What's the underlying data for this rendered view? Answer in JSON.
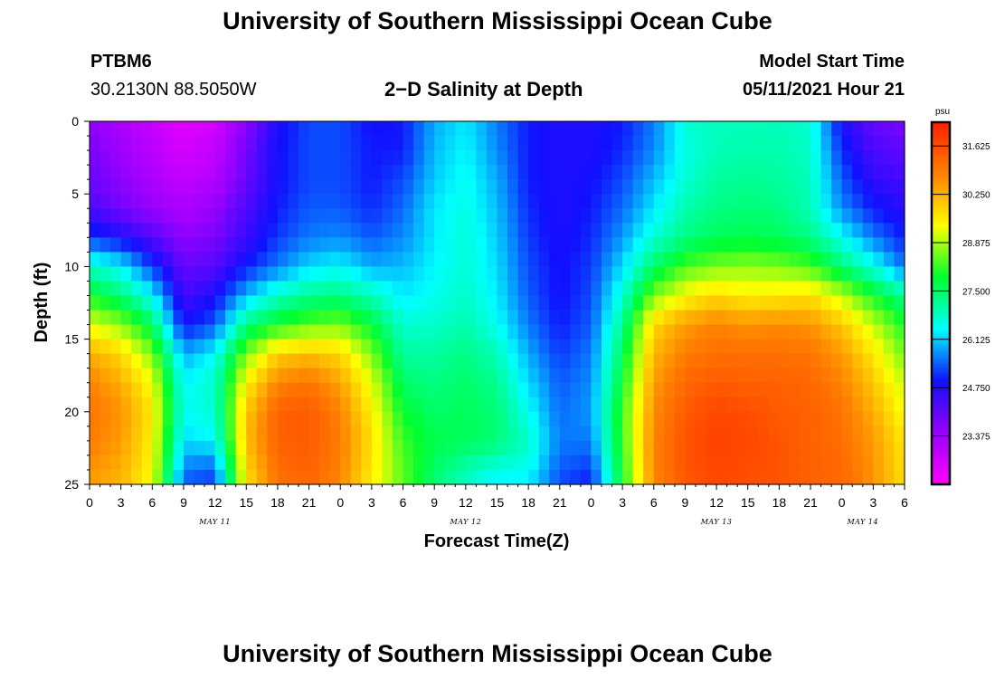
{
  "header": {
    "top_title": "University of Southern Mississippi Ocean Cube",
    "bottom_title": "University of Southern Mississippi Ocean Cube",
    "station_id": "PTBM6",
    "station_coords": "30.2130N  88.5050W",
    "model_start_label": "Model Start Time",
    "model_start_value": "05/11/2021 Hour 21"
  },
  "chart_data": {
    "type": "heatmap",
    "title": "2−D Salinity at Depth",
    "xlabel": "Forecast Time(Z)",
    "ylabel": "Depth (ft)",
    "y_ticks": [
      "0",
      "5",
      "10",
      "15",
      "20",
      "25"
    ],
    "ylim": [
      0,
      25
    ],
    "x_tick_labels": [
      "0",
      "3",
      "6",
      "9",
      "12",
      "15",
      "18",
      "21",
      "0",
      "3",
      "6",
      "9",
      "12",
      "15",
      "18",
      "21",
      "0",
      "3",
      "6",
      "9",
      "12",
      "15",
      "18",
      "21",
      "0",
      "3",
      "6"
    ],
    "date_labels": [
      "MAY 11",
      "MAY 12",
      "MAY 13",
      "MAY 14"
    ],
    "colorbar": {
      "unit": "psu",
      "range": [
        22.0,
        32.3
      ],
      "tick_labels": [
        "31.625",
        "30.250",
        "28.875",
        "27.500",
        "26.125",
        "24.750",
        "23.375"
      ],
      "tick_values": [
        31.625,
        30.25,
        28.875,
        27.5,
        26.125,
        24.75,
        23.375
      ],
      "colors": [
        "#ff00ff",
        "#9a00ff",
        "#1010ff",
        "#00ffff",
        "#00ff30",
        "#ffff00",
        "#ff8000",
        "#ff2000"
      ]
    },
    "salinity_grid": {
      "x_hours": [
        0,
        3,
        6,
        9,
        12,
        15,
        18,
        21,
        24,
        27,
        30,
        33,
        36,
        39,
        42,
        45,
        48,
        51,
        54,
        57,
        60,
        63,
        66,
        69,
        72,
        75,
        78
      ],
      "depth_ft": [
        0,
        2,
        4,
        6,
        8,
        10,
        12,
        14,
        16,
        18,
        20,
        22,
        24,
        25
      ],
      "values": [
        [
          23.6,
          23.2,
          22.8,
          22.4,
          22.6,
          23.6,
          24.8,
          25.3,
          25.3,
          24.9,
          25.0,
          25.9,
          26.3,
          25.6,
          25.0,
          24.8,
          24.8,
          25.0,
          25.6,
          26.7,
          26.9,
          26.9,
          26.9,
          26.7,
          24.8,
          24.0,
          23.8
        ],
        [
          23.8,
          23.4,
          23.0,
          22.6,
          22.9,
          23.9,
          24.9,
          25.3,
          25.3,
          25.0,
          25.0,
          26.0,
          26.4,
          25.7,
          25.0,
          24.8,
          24.8,
          25.1,
          25.7,
          26.6,
          26.9,
          27.0,
          27.0,
          26.8,
          25.1,
          24.3,
          24.1
        ],
        [
          24.0,
          23.6,
          23.2,
          22.9,
          23.1,
          24.0,
          24.9,
          25.3,
          25.3,
          25.0,
          25.3,
          26.1,
          26.5,
          25.9,
          25.0,
          24.8,
          24.9,
          25.3,
          26.0,
          26.7,
          27.1,
          27.2,
          27.1,
          26.9,
          25.4,
          24.6,
          24.4
        ],
        [
          24.3,
          23.9,
          23.5,
          23.2,
          23.5,
          24.3,
          25.0,
          25.4,
          25.4,
          25.1,
          25.5,
          26.3,
          26.6,
          26.0,
          25.1,
          24.8,
          25.0,
          25.5,
          26.3,
          27.0,
          27.3,
          27.4,
          27.3,
          26.9,
          25.7,
          25.0,
          24.7
        ],
        [
          25.2,
          24.8,
          24.2,
          23.6,
          23.8,
          24.5,
          25.2,
          25.6,
          25.7,
          25.4,
          25.7,
          26.3,
          26.7,
          26.1,
          25.2,
          24.8,
          25.1,
          25.8,
          26.7,
          27.3,
          27.6,
          27.7,
          27.6,
          27.3,
          26.5,
          25.6,
          25.0
        ],
        [
          26.8,
          26.4,
          25.2,
          24.0,
          24.2,
          25.0,
          25.6,
          26.2,
          26.4,
          25.9,
          26.0,
          26.4,
          26.7,
          26.2,
          25.3,
          24.9,
          25.2,
          26.2,
          27.5,
          28.3,
          28.6,
          28.7,
          28.6,
          28.3,
          27.4,
          26.6,
          25.5
        ],
        [
          28.0,
          27.4,
          26.4,
          24.4,
          24.8,
          26.0,
          26.8,
          27.2,
          27.3,
          26.9,
          26.3,
          26.5,
          26.8,
          26.3,
          25.4,
          24.9,
          25.3,
          26.7,
          28.6,
          29.4,
          29.8,
          29.5,
          29.6,
          29.7,
          29.0,
          28.0,
          27.2
        ],
        [
          29.2,
          28.7,
          27.6,
          24.9,
          25.4,
          27.3,
          28.0,
          28.4,
          28.6,
          27.8,
          26.7,
          26.8,
          27.0,
          26.5,
          25.6,
          25.0,
          25.4,
          27.2,
          29.8,
          30.5,
          30.8,
          30.6,
          30.7,
          30.6,
          30.0,
          29.0,
          28.0
        ],
        [
          30.3,
          29.8,
          28.6,
          25.9,
          26.4,
          28.6,
          29.9,
          30.1,
          29.8,
          28.6,
          27.1,
          27.1,
          27.3,
          26.9,
          25.9,
          25.2,
          25.6,
          27.6,
          30.2,
          30.9,
          31.1,
          31.1,
          31.1,
          31.0,
          30.5,
          29.6,
          28.5
        ],
        [
          30.8,
          30.3,
          29.3,
          26.4,
          26.8,
          29.5,
          30.8,
          31.0,
          30.4,
          29.2,
          27.5,
          27.3,
          27.5,
          27.2,
          26.2,
          25.4,
          25.7,
          27.9,
          30.5,
          31.2,
          31.4,
          31.3,
          31.3,
          31.2,
          30.8,
          30.0,
          29.0
        ],
        [
          31.0,
          30.6,
          29.6,
          26.5,
          26.7,
          30.0,
          31.3,
          31.4,
          30.8,
          29.5,
          27.9,
          27.5,
          27.6,
          27.4,
          26.5,
          25.5,
          25.8,
          28.2,
          30.7,
          31.4,
          31.7,
          31.6,
          31.4,
          31.3,
          31.0,
          30.3,
          29.3
        ],
        [
          30.9,
          30.5,
          29.5,
          26.2,
          26.4,
          30.1,
          31.3,
          31.4,
          30.9,
          29.7,
          28.2,
          27.7,
          27.6,
          27.4,
          26.8,
          25.6,
          25.6,
          28.2,
          30.8,
          31.5,
          31.8,
          31.7,
          31.5,
          31.3,
          31.1,
          30.5,
          29.6
        ],
        [
          30.6,
          30.3,
          29.4,
          25.6,
          25.4,
          29.8,
          31.1,
          31.3,
          30.8,
          29.6,
          28.4,
          27.5,
          27.0,
          26.6,
          26.5,
          25.4,
          25.2,
          28.0,
          30.8,
          31.5,
          31.7,
          31.6,
          31.5,
          31.3,
          31.2,
          30.6,
          29.7
        ],
        [
          30.5,
          30.2,
          29.3,
          25.4,
          25.2,
          29.7,
          31.0,
          31.2,
          30.7,
          29.5,
          28.4,
          27.4,
          26.8,
          26.3,
          26.3,
          25.3,
          25.0,
          27.9,
          30.7,
          31.4,
          31.7,
          31.6,
          31.5,
          31.3,
          31.2,
          30.6,
          29.7
        ]
      ]
    }
  }
}
